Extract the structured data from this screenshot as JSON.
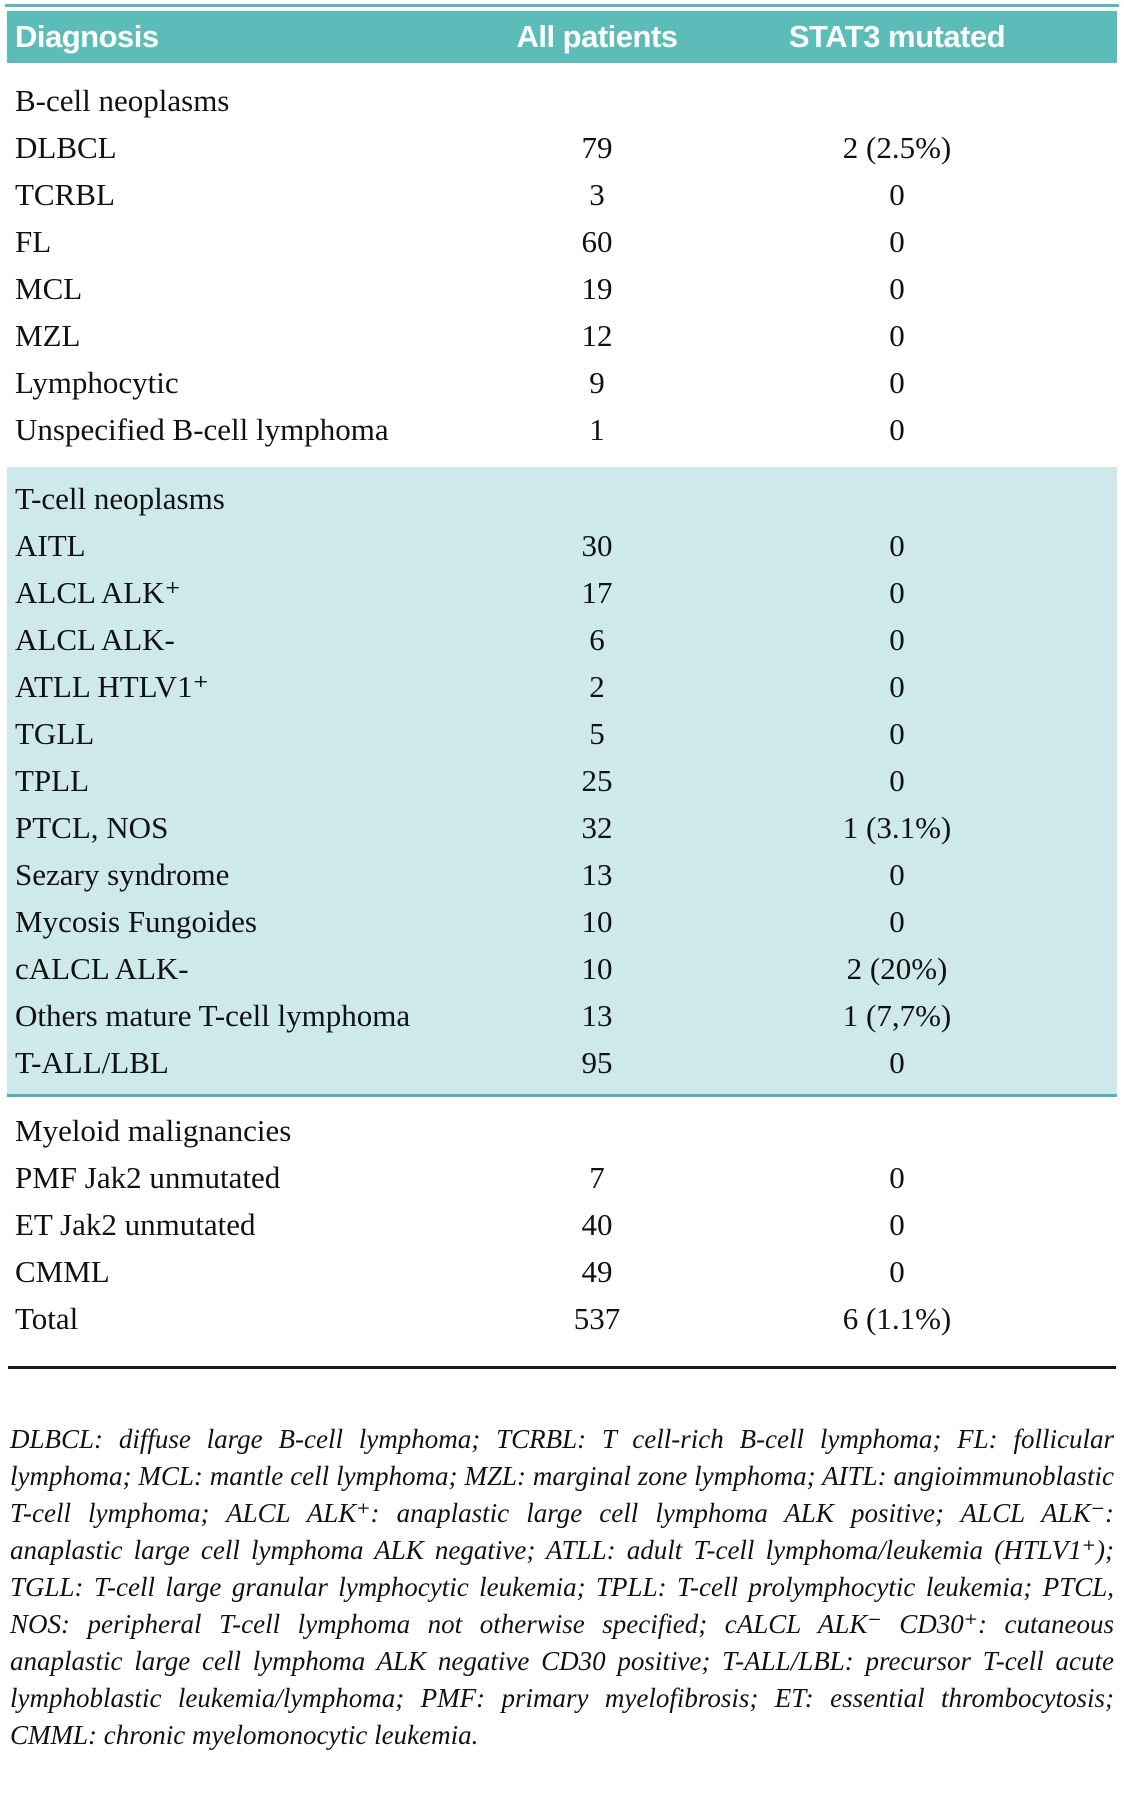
{
  "table": {
    "columns": {
      "diagnosis": "Diagnosis",
      "all_patients": "All patients",
      "stat3_mutated": "STAT3 mutated"
    },
    "sections": [
      {
        "title": "B-cell neoplasms",
        "rows": [
          {
            "diagnosis": "DLBCL",
            "all_patients": "79",
            "stat3_mutated": "2 (2.5%)"
          },
          {
            "diagnosis": "TCRBL",
            "all_patients": "3",
            "stat3_mutated": "0"
          },
          {
            "diagnosis": "FL",
            "all_patients": "60",
            "stat3_mutated": "0"
          },
          {
            "diagnosis": "MCL",
            "all_patients": "19",
            "stat3_mutated": "0"
          },
          {
            "diagnosis": "MZL",
            "all_patients": "12",
            "stat3_mutated": "0"
          },
          {
            "diagnosis": "Lymphocytic",
            "all_patients": "9",
            "stat3_mutated": "0"
          },
          {
            "diagnosis": "Unspecified B-cell lymphoma",
            "all_patients": "1",
            "stat3_mutated": "0"
          }
        ]
      },
      {
        "title": "T-cell neoplasms",
        "rows": [
          {
            "diagnosis": "AITL",
            "all_patients": "30",
            "stat3_mutated": "0"
          },
          {
            "diagnosis": "ALCL ALK⁺",
            "all_patients": "17",
            "stat3_mutated": "0"
          },
          {
            "diagnosis": "ALCL ALK-",
            "all_patients": "6",
            "stat3_mutated": "0"
          },
          {
            "diagnosis": "ATLL HTLV1⁺",
            "all_patients": "2",
            "stat3_mutated": "0"
          },
          {
            "diagnosis": "TGLL",
            "all_patients": "5",
            "stat3_mutated": "0"
          },
          {
            "diagnosis": "TPLL",
            "all_patients": "25",
            "stat3_mutated": "0"
          },
          {
            "diagnosis": "PTCL, NOS",
            "all_patients": "32",
            "stat3_mutated": "1 (3.1%)"
          },
          {
            "diagnosis": "Sezary syndrome",
            "all_patients": "13",
            "stat3_mutated": "0"
          },
          {
            "diagnosis": "Mycosis Fungoides",
            "all_patients": "10",
            "stat3_mutated": "0"
          },
          {
            "diagnosis": "cALCL ALK-",
            "all_patients": "10",
            "stat3_mutated": "2 (20%)"
          },
          {
            "diagnosis": "Others mature T-cell lymphoma",
            "all_patients": "13",
            "stat3_mutated": "1 (7,7%)"
          },
          {
            "diagnosis": "T-ALL/LBL",
            "all_patients": "95",
            "stat3_mutated": "0"
          }
        ]
      },
      {
        "title": "Myeloid malignancies",
        "rows": [
          {
            "diagnosis": "PMF Jak2 unmutated",
            "all_patients": "7",
            "stat3_mutated": "0"
          },
          {
            "diagnosis": "ET Jak2 unmutated",
            "all_patients": "40",
            "stat3_mutated": "0"
          },
          {
            "diagnosis": "CMML",
            "all_patients": "49",
            "stat3_mutated": "0"
          },
          {
            "diagnosis": "Total",
            "all_patients": "537",
            "stat3_mutated": "6 (1.1%)"
          }
        ]
      }
    ]
  },
  "footnote": "DLBCL: diffuse large B-cell lymphoma; TCRBL: T cell-rich B-cell lymphoma; FL: follicular lymphoma; MCL: mantle cell lymphoma; MZL: marginal zone lymphoma; AITL: angioimmunoblastic T-cell lymphoma; ALCL ALK⁺: anaplastic large cell lymphoma ALK positive; ALCL ALK⁻: anaplastic large cell lymphoma ALK negative; ATLL: adult T-cell lymphoma/leukemia (HTLV1⁺); TGLL: T-cell large granular lymphocytic leukemia; TPLL: T-cell prolymphocytic leukemia; PTCL, NOS: peripheral T-cell lymphoma not otherwise specified; cALCL ALK⁻ CD30⁺: cutaneous anaplastic large cell lymphoma ALK negative CD30 positive; T-ALL/LBL: precursor T-cell acute lymphoblastic leukemia/lymphoma; PMF: primary myelofibrosis; ET: essential thrombocytosis; CMML: chronic myelomonocytic leukemia.",
  "colors": {
    "header_bg": "#5cbcb9",
    "tcell_bg": "#cde9eb",
    "top_rule": "#57bab7",
    "section_divider": "#4fb3b2",
    "bottom_rule": "#1a1a1a"
  }
}
